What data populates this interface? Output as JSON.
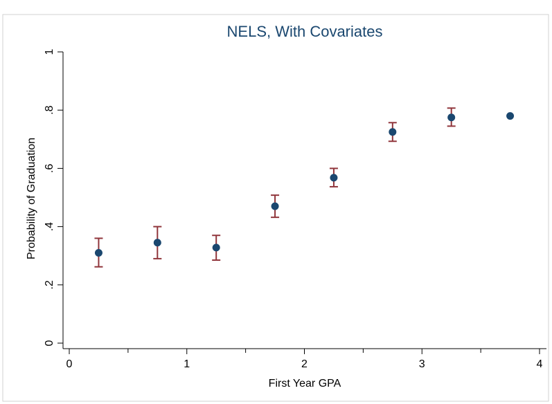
{
  "chart_data": {
    "type": "scatter",
    "title": "NELS, With Covariates",
    "xlabel": "First Year GPA",
    "ylabel": "Probability of Graduation",
    "xlim": [
      0,
      4
    ],
    "ylim": [
      0,
      1
    ],
    "x_ticks": [
      {
        "value": 0,
        "label": "0"
      },
      {
        "value": 1,
        "label": "1"
      },
      {
        "value": 2,
        "label": "2"
      },
      {
        "value": 3,
        "label": "3"
      },
      {
        "value": 4,
        "label": "4"
      }
    ],
    "x_minor_ticks": [
      0.5,
      1.5,
      2.5,
      3.5
    ],
    "y_ticks": [
      {
        "value": 0,
        "label": "0"
      },
      {
        "value": 0.2,
        "label": ".2"
      },
      {
        "value": 0.4,
        "label": ".4"
      },
      {
        "value": 0.6,
        "label": ".6"
      },
      {
        "value": 0.8,
        "label": ".8"
      },
      {
        "value": 1,
        "label": "1"
      }
    ],
    "grid": false,
    "legend": "none",
    "colors": {
      "point": "#1a476f",
      "error_bar": "#90353b",
      "title": "#1a476f",
      "plot_border": "#d0d0d0"
    },
    "points": [
      {
        "x": 0.25,
        "y": 0.31,
        "lo": 0.262,
        "hi": 0.36
      },
      {
        "x": 0.75,
        "y": 0.345,
        "lo": 0.29,
        "hi": 0.4
      },
      {
        "x": 1.25,
        "y": 0.328,
        "lo": 0.285,
        "hi": 0.37
      },
      {
        "x": 1.75,
        "y": 0.47,
        "lo": 0.432,
        "hi": 0.508
      },
      {
        "x": 2.25,
        "y": 0.568,
        "lo": 0.537,
        "hi": 0.6
      },
      {
        "x": 2.75,
        "y": 0.725,
        "lo": 0.693,
        "hi": 0.757
      },
      {
        "x": 3.25,
        "y": 0.775,
        "lo": 0.745,
        "hi": 0.807
      },
      {
        "x": 3.75,
        "y": 0.78
      }
    ]
  }
}
